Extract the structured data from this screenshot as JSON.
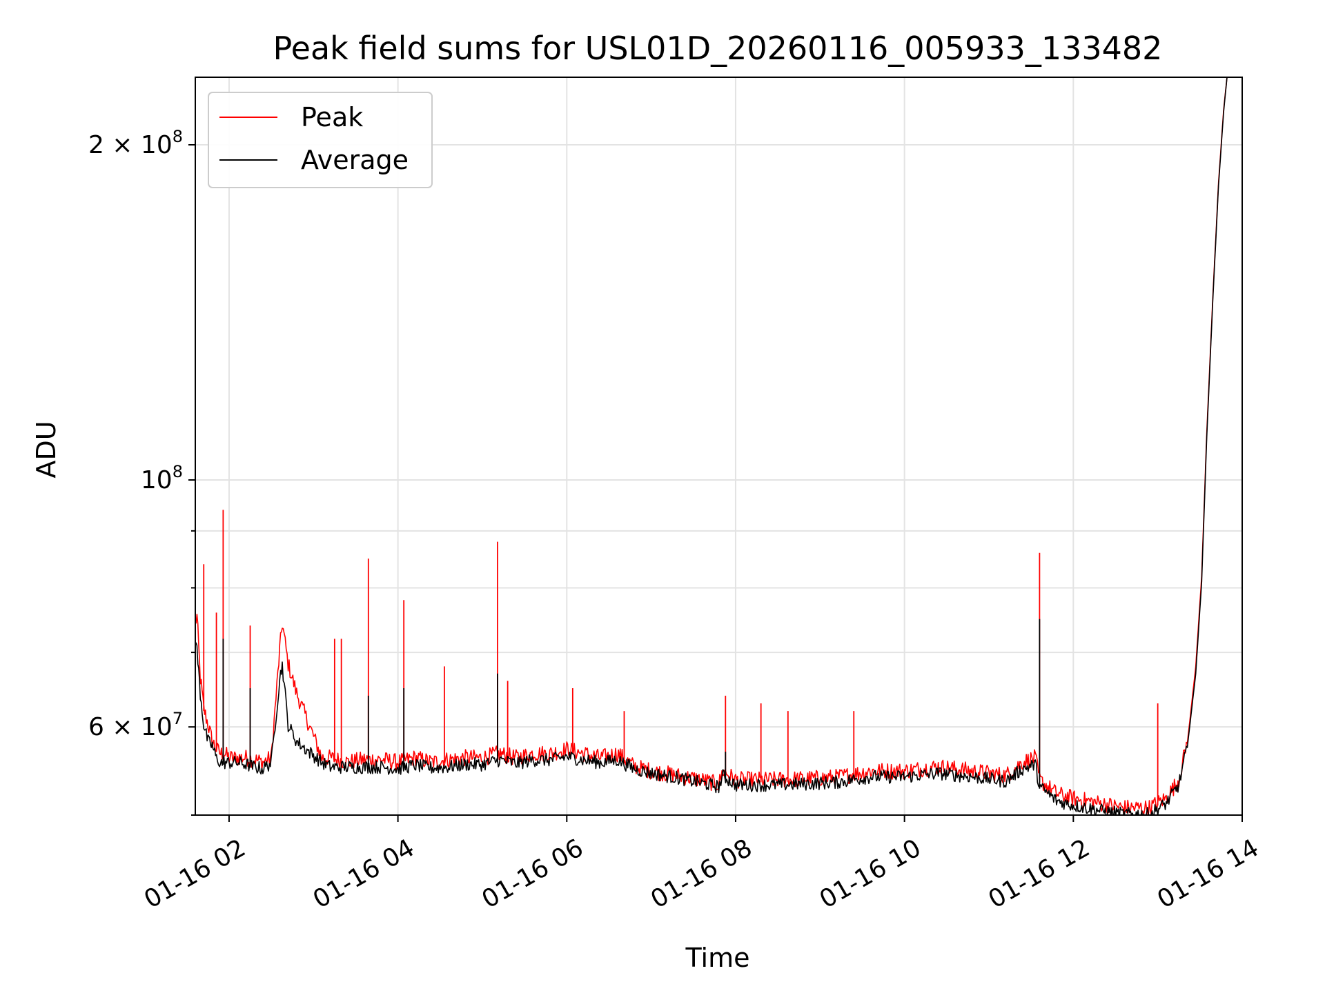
{
  "chart_data": {
    "type": "line",
    "title": "Peak field sums for USL01D_20260116_005933_133482",
    "xlabel": "Time",
    "ylabel": "ADU",
    "yscale": "log",
    "xlim": [
      1.6,
      14.0
    ],
    "ylim": [
      50000000,
      230000000
    ],
    "grid": true,
    "legend_position": "upper-left",
    "x_ticks": [
      {
        "value": 2,
        "label": "01-16 02"
      },
      {
        "value": 4,
        "label": "01-16 04"
      },
      {
        "value": 6,
        "label": "01-16 06"
      },
      {
        "value": 8,
        "label": "01-16 08"
      },
      {
        "value": 10,
        "label": "01-16 10"
      },
      {
        "value": 12,
        "label": "01-16 12"
      },
      {
        "value": 14,
        "label": "01-16 14"
      }
    ],
    "y_major_ticks": [
      {
        "value": 60000000,
        "mantissa": "6 × 10",
        "exponent": "7"
      },
      {
        "value": 100000000,
        "mantissa": "10",
        "exponent": "8"
      },
      {
        "value": 200000000,
        "mantissa": "2 × 10",
        "exponent": "8"
      }
    ],
    "y_minor_ticks": [
      50000000,
      70000000,
      80000000,
      90000000
    ],
    "series": [
      {
        "name": "Peak",
        "color": "#ff0000",
        "points": [
          [
            1.6,
            74000000
          ],
          [
            1.62,
            75000000
          ],
          [
            1.66,
            66000000
          ],
          [
            1.7,
            62000000
          ],
          [
            1.75,
            60000000
          ],
          [
            1.8,
            58000000
          ],
          [
            1.85,
            57000000
          ],
          [
            1.9,
            56500000
          ],
          [
            1.95,
            56500000
          ],
          [
            2.0,
            56000000
          ],
          [
            2.1,
            56000000
          ],
          [
            2.2,
            56000000
          ],
          [
            2.3,
            55800000
          ],
          [
            2.4,
            55500000
          ],
          [
            2.5,
            56000000
          ],
          [
            2.6,
            70000000
          ],
          [
            2.63,
            74000000
          ],
          [
            2.7,
            68000000
          ],
          [
            2.8,
            64000000
          ],
          [
            3.1,
            56000000
          ],
          [
            3.2,
            56000000
          ],
          [
            3.4,
            55500000
          ],
          [
            3.6,
            55800000
          ],
          [
            3.8,
            55800000
          ],
          [
            4.0,
            55500000
          ],
          [
            4.2,
            56000000
          ],
          [
            4.4,
            55500000
          ],
          [
            4.6,
            55800000
          ],
          [
            4.8,
            56000000
          ],
          [
            5.0,
            56000000
          ],
          [
            5.2,
            56500000
          ],
          [
            5.4,
            56000000
          ],
          [
            5.6,
            56500000
          ],
          [
            5.8,
            56500000
          ],
          [
            6.0,
            57000000
          ],
          [
            6.2,
            56500000
          ],
          [
            6.4,
            56000000
          ],
          [
            6.6,
            56500000
          ],
          [
            6.8,
            55000000
          ],
          [
            7.0,
            54500000
          ],
          [
            7.3,
            54000000
          ],
          [
            7.6,
            53500000
          ],
          [
            7.8,
            53000000
          ],
          [
            7.85,
            54500000
          ],
          [
            8.0,
            53500000
          ],
          [
            8.4,
            53500000
          ],
          [
            8.8,
            53600000
          ],
          [
            9.2,
            53800000
          ],
          [
            9.6,
            54500000
          ],
          [
            10.0,
            54500000
          ],
          [
            10.4,
            55000000
          ],
          [
            10.8,
            54500000
          ],
          [
            11.2,
            54000000
          ],
          [
            11.4,
            55500000
          ],
          [
            11.55,
            56000000
          ],
          [
            11.6,
            53500000
          ],
          [
            11.8,
            52000000
          ],
          [
            12.0,
            51500000
          ],
          [
            12.3,
            51000000
          ],
          [
            12.6,
            50500000
          ],
          [
            12.9,
            50500000
          ],
          [
            13.1,
            51500000
          ],
          [
            13.25,
            53500000
          ],
          [
            13.35,
            58000000
          ],
          [
            13.45,
            68000000
          ],
          [
            13.52,
            82000000
          ],
          [
            13.58,
            110000000
          ],
          [
            13.65,
            145000000
          ],
          [
            13.72,
            185000000
          ],
          [
            13.78,
            215000000
          ],
          [
            13.82,
            230000000
          ]
        ],
        "spikes": [
          [
            1.7,
            84000000
          ],
          [
            1.85,
            76000000
          ],
          [
            1.93,
            94000000
          ],
          [
            2.25,
            74000000
          ],
          [
            3.25,
            72000000
          ],
          [
            3.33,
            72000000
          ],
          [
            3.65,
            85000000
          ],
          [
            4.07,
            78000000
          ],
          [
            4.55,
            68000000
          ],
          [
            5.18,
            88000000
          ],
          [
            5.3,
            66000000
          ],
          [
            6.07,
            65000000
          ],
          [
            6.68,
            62000000
          ],
          [
            7.88,
            64000000
          ],
          [
            8.3,
            63000000
          ],
          [
            8.62,
            62000000
          ],
          [
            9.4,
            62000000
          ],
          [
            11.6,
            86000000
          ],
          [
            13.0,
            63000000
          ]
        ]
      },
      {
        "name": "Average",
        "color": "#000000",
        "points": [
          [
            1.6,
            72000000
          ],
          [
            1.62,
            70000000
          ],
          [
            1.66,
            64000000
          ],
          [
            1.7,
            60000000
          ],
          [
            1.75,
            58000000
          ],
          [
            1.8,
            57500000
          ],
          [
            1.85,
            56000000
          ],
          [
            1.9,
            55500000
          ],
          [
            1.95,
            55500000
          ],
          [
            2.0,
            55500000
          ],
          [
            2.1,
            55500000
          ],
          [
            2.2,
            55300000
          ],
          [
            2.3,
            55000000
          ],
          [
            2.4,
            54800000
          ],
          [
            2.5,
            55500000
          ],
          [
            2.6,
            66000000
          ],
          [
            2.63,
            68000000
          ],
          [
            2.7,
            60000000
          ],
          [
            2.8,
            58000000
          ],
          [
            3.1,
            55500000
          ],
          [
            3.2,
            55000000
          ],
          [
            3.4,
            55000000
          ],
          [
            3.6,
            55000000
          ],
          [
            3.8,
            55000000
          ],
          [
            4.0,
            54800000
          ],
          [
            4.2,
            55200000
          ],
          [
            4.4,
            54900000
          ],
          [
            4.6,
            55000000
          ],
          [
            4.8,
            55300000
          ],
          [
            5.0,
            55300000
          ],
          [
            5.2,
            55800000
          ],
          [
            5.4,
            55400000
          ],
          [
            5.6,
            55800000
          ],
          [
            5.8,
            55800000
          ],
          [
            6.0,
            56200000
          ],
          [
            6.2,
            55800000
          ],
          [
            6.4,
            55500000
          ],
          [
            6.6,
            55800000
          ],
          [
            6.8,
            54800000
          ],
          [
            7.0,
            54300000
          ],
          [
            7.3,
            53800000
          ],
          [
            7.6,
            53200000
          ],
          [
            7.8,
            52800000
          ],
          [
            7.85,
            54000000
          ],
          [
            8.0,
            53000000
          ],
          [
            8.4,
            53000000
          ],
          [
            8.8,
            53100000
          ],
          [
            9.2,
            53300000
          ],
          [
            9.6,
            53900000
          ],
          [
            10.0,
            53900000
          ],
          [
            10.4,
            54300000
          ],
          [
            10.8,
            53900000
          ],
          [
            11.2,
            53400000
          ],
          [
            11.4,
            54800000
          ],
          [
            11.55,
            55300000
          ],
          [
            11.6,
            52800000
          ],
          [
            11.8,
            51300000
          ],
          [
            12.0,
            50800000
          ],
          [
            12.3,
            50300000
          ],
          [
            12.6,
            49900000
          ],
          [
            12.9,
            49900000
          ],
          [
            13.1,
            51000000
          ],
          [
            13.25,
            53000000
          ],
          [
            13.35,
            57500000
          ],
          [
            13.45,
            67000000
          ],
          [
            13.52,
            81000000
          ],
          [
            13.58,
            109000000
          ],
          [
            13.65,
            144000000
          ],
          [
            13.72,
            184000000
          ],
          [
            13.78,
            214000000
          ],
          [
            13.82,
            230000000
          ]
        ],
        "spikes": [
          [
            1.93,
            72000000
          ],
          [
            2.25,
            65000000
          ],
          [
            3.65,
            64000000
          ],
          [
            4.07,
            65000000
          ],
          [
            5.18,
            67000000
          ],
          [
            11.6,
            75000000
          ],
          [
            7.88,
            57000000
          ]
        ]
      }
    ],
    "legend": [
      {
        "label": "Peak",
        "color": "#ff0000"
      },
      {
        "label": "Average",
        "color": "#000000"
      }
    ]
  }
}
